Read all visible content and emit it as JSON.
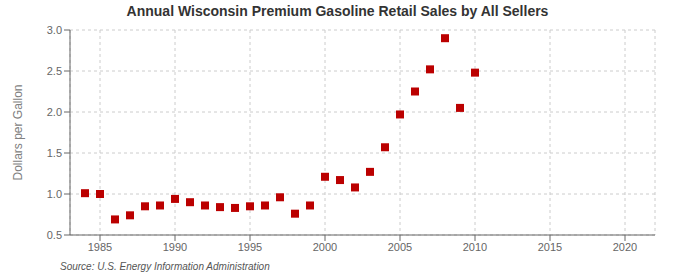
{
  "chart_data": {
    "type": "scatter",
    "title": "Annual Wisconsin Premium Gasoline Retail Sales by All Sellers",
    "ylabel": "Dollars per Gallon",
    "annotation": "Source: U.S. Energy Information Administration",
    "x": [
      1984,
      1985,
      1986,
      1987,
      1988,
      1989,
      1990,
      1991,
      1992,
      1993,
      1994,
      1995,
      1996,
      1997,
      1998,
      1999,
      2000,
      2001,
      2002,
      2003,
      2004,
      2005,
      2006,
      2007,
      2008,
      2009,
      2010
    ],
    "values": [
      1.01,
      1.0,
      0.69,
      0.74,
      0.85,
      0.86,
      0.94,
      0.9,
      0.86,
      0.84,
      0.83,
      0.85,
      0.86,
      0.96,
      0.76,
      0.86,
      1.21,
      1.17,
      1.08,
      1.27,
      1.57,
      1.97,
      2.25,
      2.52,
      2.9,
      2.05,
      2.48
    ],
    "color": "#bb0000",
    "marker": "square",
    "xlim": [
      1983,
      2022
    ],
    "ylim": [
      0.5,
      3.0
    ],
    "xticks": [
      1985,
      1990,
      1995,
      2000,
      2005,
      2010,
      2015,
      2020
    ],
    "yticks": [
      0.5,
      {
        "value": 1.0,
        "label": "1.0"
      },
      1.5,
      {
        "value": 2.0,
        "label": "2.0"
      },
      2.5,
      {
        "value": 3.0,
        "label": "3.0"
      }
    ],
    "grid": true
  }
}
